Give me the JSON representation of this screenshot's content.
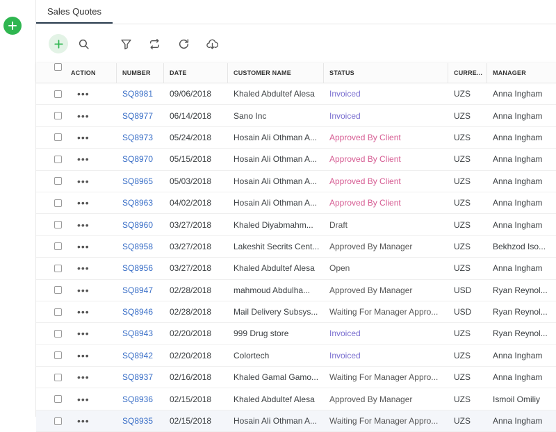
{
  "tabs": [
    {
      "label": "Sales Quotes"
    }
  ],
  "colors": {
    "accent_green": "#2fb650",
    "link_blue": "#3a6fc7",
    "invoiced": "#7a6fd0",
    "approved_by_client": "#d65b92"
  },
  "toolbar": {
    "icons": [
      "plus-icon",
      "search-icon",
      "filter-icon",
      "sync-icon",
      "refresh-icon",
      "download-icon"
    ]
  },
  "table": {
    "columns": [
      "ACTION",
      "NUMBER",
      "DATE",
      "CUSTOMER NAME",
      "STATUS",
      "CURRE...",
      "MANAGER"
    ],
    "rows": [
      {
        "number": "SQ8981",
        "date": "09/06/2018",
        "customer": "Khaled Abdultef Alesa",
        "status": "Invoiced",
        "currency": "UZS",
        "manager": "Anna Ingham"
      },
      {
        "number": "SQ8977",
        "date": "06/14/2018",
        "customer": "Sano Inc",
        "status": "Invoiced",
        "currency": "UZS",
        "manager": "Anna Ingham"
      },
      {
        "number": "SQ8973",
        "date": "05/24/2018",
        "customer": "Hosain Ali Othman A...",
        "status": "Approved By Client",
        "currency": "UZS",
        "manager": "Anna Ingham"
      },
      {
        "number": "SQ8970",
        "date": "05/15/2018",
        "customer": "Hosain Ali Othman A...",
        "status": "Approved By Client",
        "currency": "UZS",
        "manager": "Anna Ingham"
      },
      {
        "number": "SQ8965",
        "date": "05/03/2018",
        "customer": "Hosain Ali Othman A...",
        "status": "Approved By Client",
        "currency": "UZS",
        "manager": "Anna Ingham"
      },
      {
        "number": "SQ8963",
        "date": "04/02/2018",
        "customer": "Hosain Ali Othman A...",
        "status": "Approved By Client",
        "currency": "UZS",
        "manager": "Anna Ingham"
      },
      {
        "number": "SQ8960",
        "date": "03/27/2018",
        "customer": "Khaled Diyabmahm...",
        "status": "Draft",
        "currency": "UZS",
        "manager": "Anna Ingham"
      },
      {
        "number": "SQ8958",
        "date": "03/27/2018",
        "customer": "Lakeshit Secrits Cent...",
        "status": "Approved By Manager",
        "currency": "UZS",
        "manager": "Bekhzod Iso..."
      },
      {
        "number": "SQ8956",
        "date": "03/27/2018",
        "customer": "Khaled Abdultef Alesa",
        "status": "Open",
        "currency": "UZS",
        "manager": "Anna Ingham"
      },
      {
        "number": "SQ8947",
        "date": "02/28/2018",
        "customer": "mahmoud Abdulha...",
        "status": "Approved By Manager",
        "currency": "USD",
        "manager": "Ryan Reynol..."
      },
      {
        "number": "SQ8946",
        "date": "02/28/2018",
        "customer": "Mail Delivery Subsys...",
        "status": "Waiting For Manager Appro...",
        "currency": "USD",
        "manager": "Ryan Reynol..."
      },
      {
        "number": "SQ8943",
        "date": "02/20/2018",
        "customer": "999 Drug store",
        "status": "Invoiced",
        "currency": "UZS",
        "manager": "Ryan Reynol..."
      },
      {
        "number": "SQ8942",
        "date": "02/20/2018",
        "customer": "Colortech",
        "status": "Invoiced",
        "currency": "UZS",
        "manager": "Anna Ingham"
      },
      {
        "number": "SQ8937",
        "date": "02/16/2018",
        "customer": "Khaled Gamal Gamo...",
        "status": "Waiting For Manager Appro...",
        "currency": "UZS",
        "manager": "Anna Ingham"
      },
      {
        "number": "SQ8936",
        "date": "02/15/2018",
        "customer": "Khaled Abdultef Alesa",
        "status": "Approved By Manager",
        "currency": "UZS",
        "manager": "Ismoil Omiliy"
      },
      {
        "number": "SQ8935",
        "date": "02/15/2018",
        "customer": "Hosain Ali Othman A...",
        "status": "Waiting For Manager Appro...",
        "currency": "UZS",
        "manager": "Anna Ingham"
      }
    ]
  }
}
